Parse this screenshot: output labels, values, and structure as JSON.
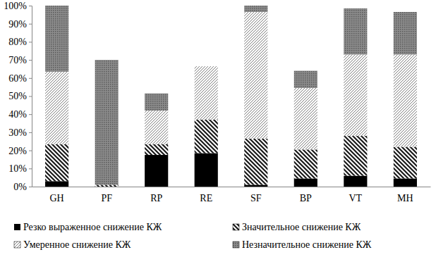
{
  "chart_data": {
    "type": "bar",
    "stacked": true,
    "legend": "bottom",
    "categories": [
      "GH",
      "PF",
      "RP",
      "RE",
      "SF",
      "BP",
      "VT",
      "MH"
    ],
    "ylim": [
      0,
      100
    ],
    "yticks": [
      {
        "value": 0,
        "label": "0%"
      },
      {
        "value": 10,
        "label": "10%"
      },
      {
        "value": 20,
        "label": "20%"
      },
      {
        "value": 30,
        "label": "30%"
      },
      {
        "value": 40,
        "label": "40%"
      },
      {
        "value": 50,
        "label": "50%"
      },
      {
        "value": 60,
        "label": "60%"
      },
      {
        "value": 70,
        "label": "70%"
      },
      {
        "value": 80,
        "label": "80%"
      },
      {
        "value": 90,
        "label": "90%"
      },
      {
        "value": 100,
        "label": "100%"
      }
    ],
    "series": [
      {
        "name": "Резко выраженное снижение КЖ",
        "color": "#000000",
        "values": [
          3,
          0,
          17.5,
          18.5,
          1,
          4.5,
          6,
          4.5
        ]
      },
      {
        "name": "Значительное снижение КЖ",
        "color": "#1a1a1a",
        "values": [
          20.5,
          1,
          6,
          18.5,
          25.5,
          16,
          22,
          17.5
        ]
      },
      {
        "name": "Умеренное снижение КЖ",
        "color": "#6e6e6e",
        "values": [
          40,
          0,
          18.5,
          29.5,
          70,
          34,
          45,
          51
        ]
      },
      {
        "name": "Незначительное снижение КЖ",
        "color": "#5a5a5a",
        "values": [
          36.5,
          69,
          9.5,
          0,
          3.5,
          9.5,
          25.5,
          23.5
        ]
      }
    ]
  }
}
